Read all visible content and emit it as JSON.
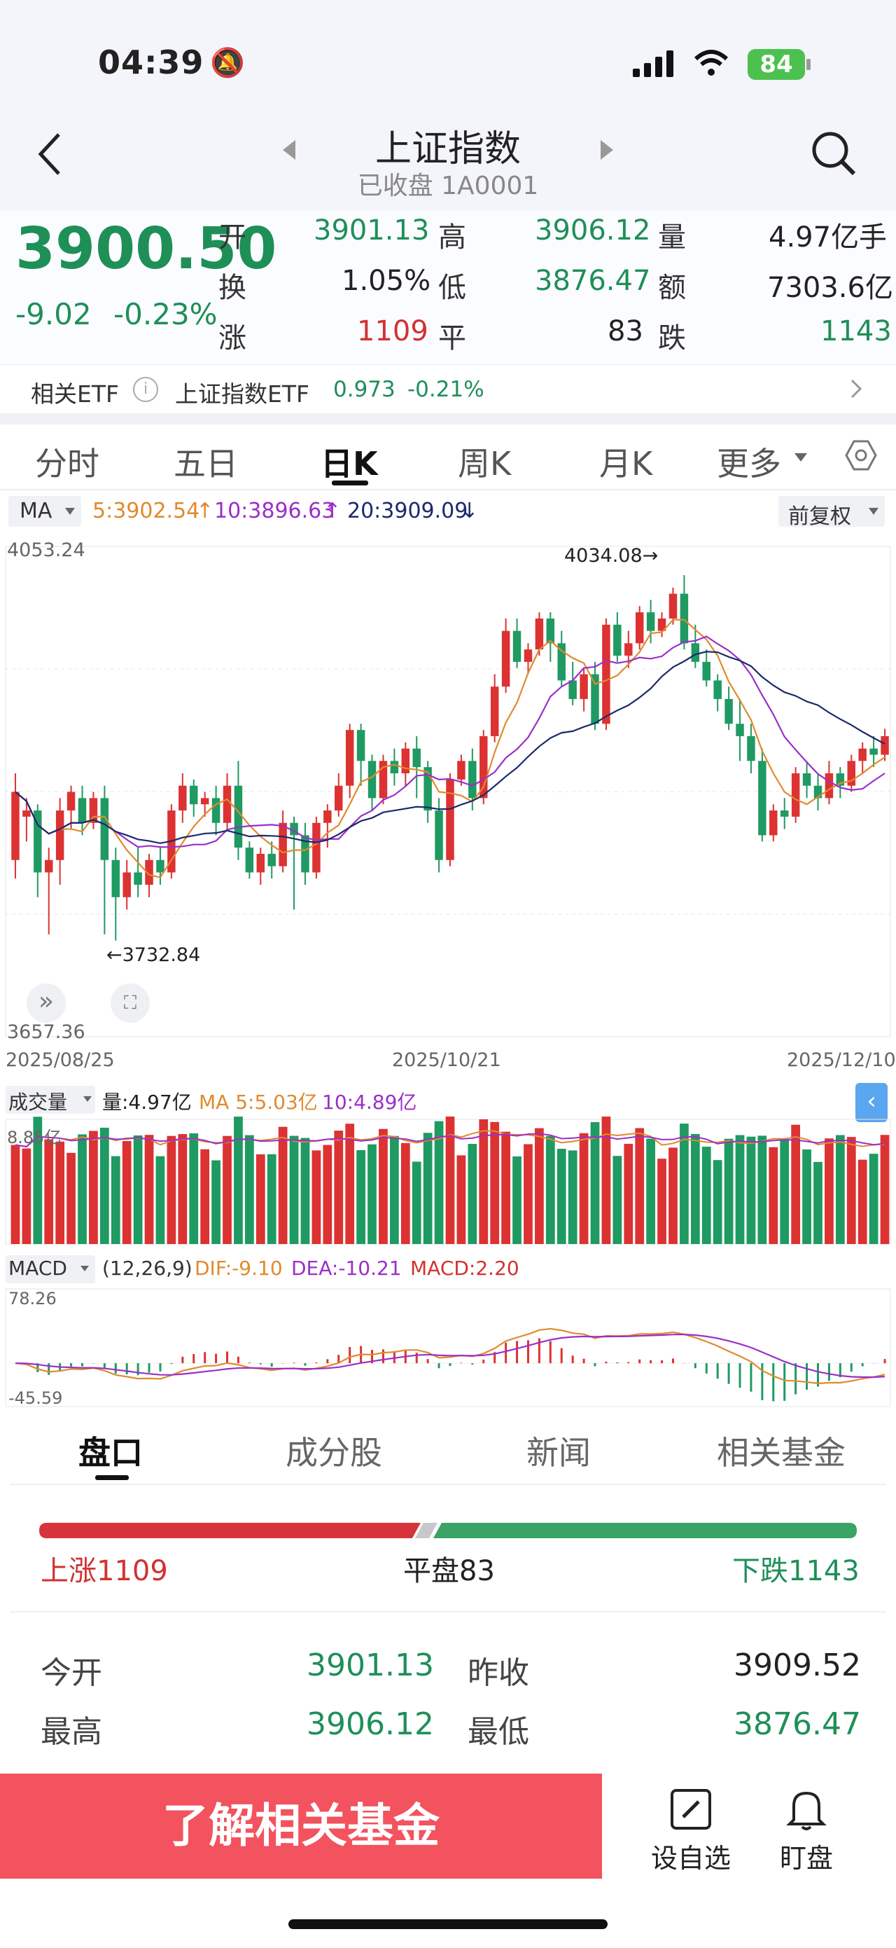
{
  "status_bar": {
    "time": "04:39",
    "battery": "84"
  },
  "nav": {
    "title": "上证指数",
    "subtitle": "已收盘 1A0001"
  },
  "quote": {
    "price": "3900.50",
    "change": "-9.02",
    "change_pct": "-0.23%",
    "fields": [
      {
        "label": "开",
        "value": "3901.13"
      },
      {
        "label": "高",
        "value": "3906.12"
      },
      {
        "label": "量",
        "value": "4.97亿手"
      },
      {
        "label": "换",
        "value": "1.05%"
      },
      {
        "label": "低",
        "value": "3876.47"
      },
      {
        "label": "额",
        "value": "7303.6亿"
      },
      {
        "label": "涨",
        "value": "1109"
      },
      {
        "label": "平",
        "value": "83"
      },
      {
        "label": "跌",
        "value": "1143"
      }
    ]
  },
  "etf": {
    "label": "相关ETF",
    "name": "上证指数ETF",
    "price": "0.973",
    "pct": "-0.21%"
  },
  "period_tabs": [
    "分时",
    "五日",
    "日K",
    "周K",
    "月K",
    "更多"
  ],
  "period_active": "日K",
  "ma_legend": {
    "label": "MA",
    "ma5": "5:3902.54",
    "ma10": "10:3896.63",
    "ma20": "20:3909.09",
    "adjust": "前复权"
  },
  "chart_data": {
    "type": "candlestick",
    "y_top_label": "4053.24",
    "y_bottom_label": "3657.36",
    "y_range": [
      3657.36,
      4053.24
    ],
    "high_annotation": "4034.08",
    "low_annotation": "3732.84",
    "x_labels": [
      "2025/08/25",
      "2025/10/21",
      "2025/12/10"
    ],
    "ohlc": [
      [
        3800,
        3855,
        3785,
        3870
      ],
      [
        3835,
        3840,
        3815,
        3850
      ],
      [
        3840,
        3790,
        3770,
        3845
      ],
      [
        3790,
        3800,
        3740,
        3810
      ],
      [
        3800,
        3840,
        3780,
        3850
      ],
      [
        3840,
        3855,
        3825,
        3860
      ],
      [
        3850,
        3830,
        3820,
        3860
      ],
      [
        3830,
        3850,
        3825,
        3855
      ],
      [
        3850,
        3800,
        3740,
        3860
      ],
      [
        3800,
        3770,
        3735,
        3810
      ],
      [
        3770,
        3790,
        3760,
        3800
      ],
      [
        3790,
        3780,
        3770,
        3810
      ],
      [
        3780,
        3800,
        3770,
        3805
      ],
      [
        3800,
        3790,
        3780,
        3810
      ],
      [
        3790,
        3840,
        3785,
        3845
      ],
      [
        3840,
        3860,
        3830,
        3870
      ],
      [
        3860,
        3845,
        3835,
        3865
      ],
      [
        3845,
        3850,
        3835,
        3855
      ],
      [
        3850,
        3830,
        3820,
        3860
      ],
      [
        3830,
        3860,
        3825,
        3870
      ],
      [
        3860,
        3810,
        3800,
        3880
      ],
      [
        3810,
        3790,
        3785,
        3815
      ],
      [
        3790,
        3805,
        3780,
        3810
      ],
      [
        3805,
        3795,
        3785,
        3815
      ],
      [
        3795,
        3830,
        3790,
        3840
      ],
      [
        3830,
        3820,
        3760,
        3835
      ],
      [
        3820,
        3790,
        3780,
        3830
      ],
      [
        3790,
        3830,
        3785,
        3835
      ],
      [
        3830,
        3840,
        3810,
        3845
      ],
      [
        3840,
        3860,
        3835,
        3870
      ],
      [
        3860,
        3905,
        3850,
        3910
      ],
      [
        3905,
        3880,
        3860,
        3910
      ],
      [
        3880,
        3850,
        3840,
        3885
      ],
      [
        3850,
        3880,
        3845,
        3885
      ],
      [
        3880,
        3870,
        3860,
        3890
      ],
      [
        3870,
        3890,
        3860,
        3895
      ],
      [
        3890,
        3875,
        3850,
        3900
      ],
      [
        3875,
        3840,
        3830,
        3880
      ],
      [
        3840,
        3800,
        3790,
        3850
      ],
      [
        3800,
        3865,
        3795,
        3870
      ],
      [
        3865,
        3880,
        3860,
        3885
      ],
      [
        3880,
        3850,
        3840,
        3890
      ],
      [
        3850,
        3900,
        3845,
        3905
      ],
      [
        3900,
        3940,
        3895,
        3950
      ],
      [
        3940,
        3985,
        3935,
        3995
      ],
      [
        3985,
        3960,
        3955,
        3995
      ],
      [
        3960,
        3970,
        3950,
        3975
      ],
      [
        3970,
        3995,
        3965,
        4000
      ],
      [
        3995,
        3975,
        3960,
        4000
      ],
      [
        3975,
        3945,
        3940,
        3985
      ],
      [
        3945,
        3930,
        3925,
        3960
      ],
      [
        3930,
        3950,
        3920,
        3955
      ],
      [
        3950,
        3910,
        3905,
        3960
      ],
      [
        3910,
        3990,
        3905,
        3995
      ],
      [
        3990,
        3965,
        3960,
        4000
      ],
      [
        3965,
        3975,
        3955,
        3985
      ],
      [
        3975,
        4000,
        3970,
        4005
      ],
      [
        4000,
        3985,
        3975,
        4010
      ],
      [
        3985,
        3995,
        3980,
        4000
      ],
      [
        3995,
        4015,
        3990,
        4020
      ],
      [
        4015,
        3975,
        3970,
        4030
      ],
      [
        3975,
        3960,
        3955,
        3990
      ],
      [
        3960,
        3945,
        3940,
        3970
      ],
      [
        3945,
        3930,
        3920,
        3950
      ],
      [
        3930,
        3910,
        3905,
        3940
      ],
      [
        3910,
        3900,
        3880,
        3930
      ],
      [
        3900,
        3880,
        3870,
        3910
      ],
      [
        3880,
        3820,
        3815,
        3890
      ],
      [
        3820,
        3840,
        3815,
        3845
      ],
      [
        3840,
        3835,
        3825,
        3850
      ],
      [
        3835,
        3870,
        3830,
        3875
      ],
      [
        3870,
        3860,
        3850,
        3880
      ],
      [
        3860,
        3850,
        3840,
        3870
      ],
      [
        3850,
        3870,
        3845,
        3880
      ],
      [
        3870,
        3860,
        3850,
        3875
      ],
      [
        3860,
        3880,
        3855,
        3885
      ],
      [
        3880,
        3890,
        3870,
        3895
      ],
      [
        3890,
        3885,
        3875,
        3900
      ],
      [
        3885,
        3900,
        3880,
        3906
      ]
    ]
  },
  "volume_legend": {
    "label": "成交量",
    "vol": "量:4.97亿",
    "ma5": "MA 5:5.03亿",
    "ma10": "10:4.89亿",
    "top": "8.85亿"
  },
  "macd_legend": {
    "label": "MACD",
    "params": "(12,26,9)",
    "dif": "DIF:-9.10",
    "dea": "DEA:-10.21",
    "macd": "MACD:2.20",
    "top": "78.26",
    "bottom": "-45.59"
  },
  "panel_tabs": [
    "盘口",
    "成分股",
    "新闻",
    "相关基金"
  ],
  "breadth": {
    "up": "上涨1109",
    "flat": "平盘83",
    "down": "下跌1143",
    "up_frac": 0.47
  },
  "details": [
    {
      "label": "今开",
      "value": "3901.13",
      "label2": "昨收",
      "value2": "3909.52"
    },
    {
      "label": "最高",
      "value": "3906.12",
      "label2": "最低",
      "value2": "3876.47"
    }
  ],
  "cta": "了解相关基金",
  "bottom_actions": [
    "设自选",
    "盯盘"
  ]
}
